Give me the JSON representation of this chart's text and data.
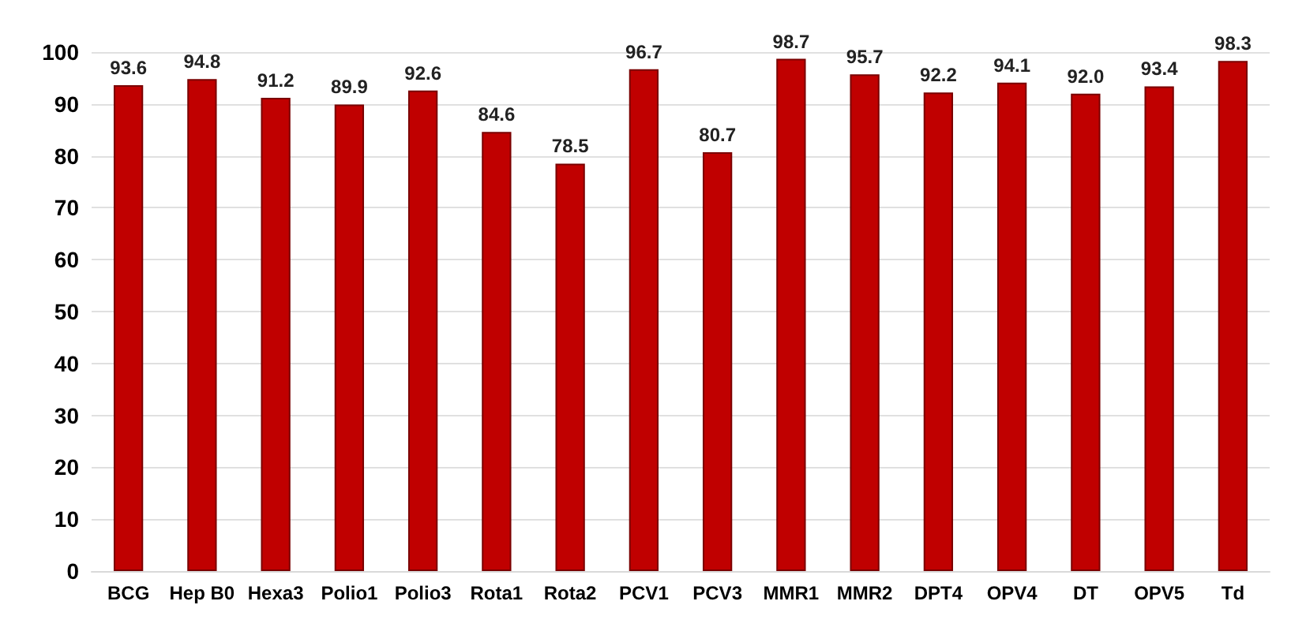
{
  "chart_data": {
    "type": "bar",
    "categories": [
      "BCG",
      "Hep B0",
      "Hexa3",
      "Polio1",
      "Polio3",
      "Rota1",
      "Rota2",
      "PCV1",
      "PCV3",
      "MMR1",
      "MMR2",
      "DPT4",
      "OPV4",
      "DT",
      "OPV5",
      "Td"
    ],
    "values": [
      93.6,
      94.8,
      91.2,
      89.9,
      92.6,
      84.6,
      78.5,
      96.7,
      80.7,
      98.7,
      95.7,
      92.2,
      94.1,
      92.0,
      93.4,
      98.3
    ],
    "color": "#c00000",
    "ylim": [
      0,
      100
    ],
    "yticks": [
      0,
      10,
      20,
      30,
      40,
      50,
      60,
      70,
      80,
      90,
      100
    ],
    "value_labels": [
      "93.6",
      "94.8",
      "91.2",
      "89.9",
      "92.6",
      "84.6",
      "78.5",
      "96.7",
      "80.7",
      "98.7",
      "95.7",
      "92.2",
      "94.1",
      "92.0",
      "93.4",
      "98.3"
    ],
    "grid": "y"
  }
}
